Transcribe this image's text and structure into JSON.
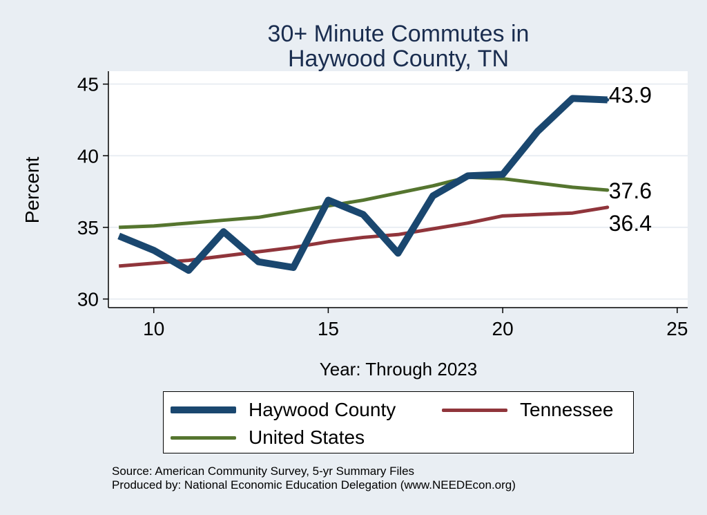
{
  "chart_data": {
    "type": "line",
    "title": [
      "30+ Minute Commutes in",
      "Haywood County, TN"
    ],
    "xlabel": "Year: Through 2023",
    "ylabel": "Percent",
    "xlim": [
      8.7,
      25.3
    ],
    "ylim": [
      29.4,
      45.9
    ],
    "xticks": [
      10,
      15,
      20,
      25
    ],
    "yticks": [
      30,
      35,
      40,
      45
    ],
    "grid": true,
    "legend_position": "bottom",
    "x": [
      9,
      10,
      11,
      12,
      13,
      14,
      15,
      16,
      17,
      18,
      19,
      20,
      21,
      22,
      23
    ],
    "series": [
      {
        "name": "Haywood County",
        "color": "#1a476f",
        "values": [
          34.4,
          33.4,
          32.0,
          34.7,
          32.6,
          32.2,
          36.9,
          35.9,
          33.2,
          37.2,
          38.6,
          38.7,
          41.7,
          44.0,
          43.9
        ],
        "end_label": "43.9"
      },
      {
        "name": "Tennessee",
        "color": "#90353b",
        "values": [
          32.3,
          32.5,
          32.7,
          33.0,
          33.3,
          33.6,
          34.0,
          34.3,
          34.5,
          34.9,
          35.3,
          35.8,
          35.9,
          36.0,
          36.4
        ],
        "end_label": "36.4"
      },
      {
        "name": "United States",
        "color": "#55752f",
        "values": [
          35.0,
          35.1,
          35.3,
          35.5,
          35.7,
          36.1,
          36.5,
          36.9,
          37.4,
          37.9,
          38.5,
          38.4,
          38.1,
          37.8,
          37.6
        ],
        "end_label": "37.6"
      }
    ]
  },
  "legend": {
    "items": [
      "Haywood County",
      "Tennessee",
      "United States"
    ]
  },
  "source": {
    "line1": "Source: American Community Survey, 5-yr Summary Files",
    "line2": "Produced by: National Economic Education Delegation (www.NEEDEcon.org)"
  }
}
